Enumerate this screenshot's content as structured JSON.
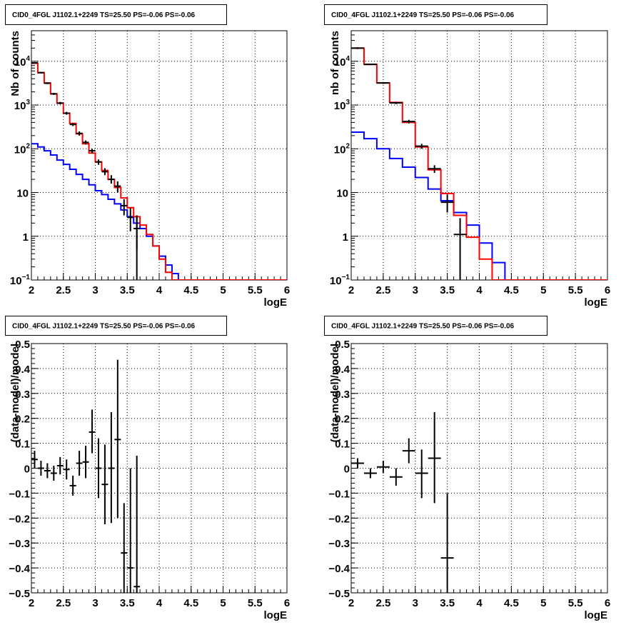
{
  "colors": {
    "data": "#000000",
    "total_model": "#ff0000",
    "source_model": "#0000ff",
    "grid": "#000000",
    "frame": "#000000"
  },
  "chart_data": [
    {
      "type": "histogram",
      "panel": "top-left",
      "title": "CID0_4FGL J1102.1+2249 TS=25.50 PS=-0.06 PS=-0.06",
      "xlabel": "logE",
      "ylabel": "Nb of counts",
      "ylog": true,
      "xlim": [
        2,
        6
      ],
      "ylim": [
        0.1,
        50000
      ],
      "x_ticks": [
        "2",
        "2.5",
        "3",
        "3.5",
        "4",
        "4.5",
        "5",
        "5.5",
        "6"
      ],
      "y_ticks": [
        {
          "value": 0.1,
          "base": "10",
          "exp": "−1"
        },
        {
          "value": 1,
          "label": "1"
        },
        {
          "value": 10,
          "label": "10"
        },
        {
          "value": 100,
          "base": "10",
          "exp": "2"
        },
        {
          "value": 1000,
          "base": "10",
          "exp": "3"
        },
        {
          "value": 10000,
          "base": "10",
          "exp": "4"
        }
      ],
      "grid": true,
      "bin_edges": [
        2.0,
        2.1,
        2.2,
        2.3,
        2.4,
        2.5,
        2.6,
        2.7,
        2.8,
        2.9,
        3.0,
        3.1,
        3.2,
        3.3,
        3.4,
        3.5,
        3.6,
        3.7,
        3.8,
        3.9,
        4.0,
        4.1,
        4.2,
        4.3,
        4.4,
        4.5,
        4.6,
        4.7,
        4.8,
        4.9,
        5.0,
        5.1,
        5.2,
        5.3,
        5.4,
        5.5,
        5.6,
        5.7,
        5.8,
        5.9,
        6.0
      ],
      "series": [
        {
          "role": "source_model",
          "values": [
            130,
            110,
            90,
            72,
            55,
            44,
            34,
            26,
            20,
            15,
            11,
            9,
            7,
            5.5,
            4,
            2.8,
            2,
            1.5,
            1.0,
            0.6,
            0.35,
            0.22,
            0.14,
            0.1,
            0.1,
            0.1,
            0.1,
            0.1,
            0.1,
            0.1,
            0.1,
            0.1,
            0.1,
            0.1,
            0.1,
            0.1,
            0.1,
            0.1,
            0.1,
            0.1
          ]
        },
        {
          "role": "total_model",
          "values": [
            9000,
            5500,
            3200,
            1800,
            1100,
            650,
            380,
            220,
            130,
            80,
            50,
            32,
            20,
            13,
            7.5,
            4.5,
            2.8,
            1.8,
            1.1,
            0.6,
            0.3,
            0.15,
            0.1,
            0.1,
            0.1,
            0.1,
            0.1,
            0.1,
            0.1,
            0.1,
            0.1,
            0.1,
            0.1,
            0.1,
            0.1,
            0.1,
            0.1,
            0.1,
            0.1,
            0.1
          ]
        },
        {
          "role": "data",
          "points": [
            {
              "x": 2.05,
              "y": 9200,
              "lo": 8900,
              "hi": 9500
            },
            {
              "x": 2.15,
              "y": 5500,
              "lo": 5300,
              "hi": 5700
            },
            {
              "x": 2.25,
              "y": 3150,
              "lo": 3000,
              "hi": 3300
            },
            {
              "x": 2.35,
              "y": 1800,
              "lo": 1700,
              "hi": 1900
            },
            {
              "x": 2.45,
              "y": 1110,
              "lo": 1040,
              "hi": 1180
            },
            {
              "x": 2.55,
              "y": 650,
              "lo": 600,
              "hi": 700
            },
            {
              "x": 2.65,
              "y": 360,
              "lo": 330,
              "hi": 390
            },
            {
              "x": 2.75,
              "y": 225,
              "lo": 200,
              "hi": 250
            },
            {
              "x": 2.85,
              "y": 140,
              "lo": 125,
              "hi": 155
            },
            {
              "x": 2.95,
              "y": 90,
              "lo": 80,
              "hi": 100
            },
            {
              "x": 3.05,
              "y": 50,
              "lo": 43,
              "hi": 57
            },
            {
              "x": 3.15,
              "y": 30,
              "lo": 25,
              "hi": 36
            },
            {
              "x": 3.25,
              "y": 20,
              "lo": 16,
              "hi": 25
            },
            {
              "x": 3.35,
              "y": 14,
              "lo": 10,
              "hi": 18
            },
            {
              "x": 3.45,
              "y": 5,
              "lo": 3,
              "hi": 7
            },
            {
              "x": 3.55,
              "y": 2.7,
              "lo": 1.3,
              "hi": 4.5
            },
            {
              "x": 3.65,
              "y": 1.5,
              "lo": 0.5,
              "hi": 3
            },
            {
              "x": 3.65,
              "y": 1.5,
              "lo": 0.1,
              "hi": 3
            }
          ]
        }
      ]
    },
    {
      "type": "histogram",
      "panel": "top-right",
      "title": "CID0_4FGL J1102.1+2249 TS=25.50 PS=-0.06 PS=-0.06",
      "xlabel": "logE",
      "ylabel": "nb of counts",
      "ylog": true,
      "xlim": [
        2,
        6
      ],
      "ylim": [
        0.1,
        50000
      ],
      "x_ticks": [
        "2",
        "2.5",
        "3",
        "3.5",
        "4",
        "4.5",
        "5",
        "5.5",
        "6"
      ],
      "y_ticks": [
        {
          "value": 0.1,
          "base": "10",
          "exp": "−1"
        },
        {
          "value": 1,
          "label": "1"
        },
        {
          "value": 10,
          "label": "10"
        },
        {
          "value": 100,
          "base": "10",
          "exp": "2"
        },
        {
          "value": 1000,
          "base": "10",
          "exp": "3"
        },
        {
          "value": 10000,
          "base": "10",
          "exp": "4"
        }
      ],
      "grid": true,
      "bin_edges": [
        2.0,
        2.2,
        2.4,
        2.6,
        2.8,
        3.0,
        3.2,
        3.4,
        3.6,
        3.8,
        4.0,
        4.2,
        4.4,
        4.6,
        4.8,
        5.0,
        5.2,
        5.4,
        5.6,
        5.8,
        6.0
      ],
      "series": [
        {
          "role": "source_model",
          "values": [
            240,
            170,
            100,
            60,
            38,
            22,
            12,
            6.5,
            3.5,
            1.8,
            0.7,
            0.25,
            0.1,
            0.1,
            0.1,
            0.1,
            0.1,
            0.1,
            0.1,
            0.1
          ]
        },
        {
          "role": "total_model",
          "values": [
            20000,
            8500,
            3200,
            1150,
            400,
            110,
            33,
            9.5,
            3,
            0.95,
            0.3,
            0.1,
            0.1,
            0.1,
            0.1,
            0.1,
            0.1,
            0.1,
            0.1,
            0.1
          ]
        },
        {
          "role": "data",
          "points": [
            {
              "x": 2.1,
              "y": 20000,
              "lo": 19000,
              "hi": 21000
            },
            {
              "x": 2.3,
              "y": 8500,
              "lo": 8200,
              "hi": 8800
            },
            {
              "x": 2.5,
              "y": 3200,
              "lo": 3050,
              "hi": 3350
            },
            {
              "x": 2.7,
              "y": 1120,
              "lo": 1050,
              "hi": 1190
            },
            {
              "x": 2.9,
              "y": 420,
              "lo": 380,
              "hi": 460
            },
            {
              "x": 3.1,
              "y": 115,
              "lo": 100,
              "hi": 130
            },
            {
              "x": 3.3,
              "y": 35,
              "lo": 28,
              "hi": 42
            },
            {
              "x": 3.5,
              "y": 6,
              "lo": 3.5,
              "hi": 9
            },
            {
              "x": 3.7,
              "y": 1.1,
              "lo": 0.1,
              "hi": 2.6
            }
          ]
        }
      ]
    },
    {
      "type": "scatter",
      "panel": "bottom-left",
      "title": "CID0_4FGL J1102.1+2249 TS=25.50 PS=-0.06 PS=-0.06",
      "xlabel": "logE",
      "ylabel": "(data-model)/model",
      "xlim": [
        2,
        6
      ],
      "ylim": [
        -0.5,
        0.5
      ],
      "x_ticks": [
        "2",
        "2.5",
        "3",
        "3.5",
        "4",
        "4.5",
        "5",
        "5.5",
        "6"
      ],
      "y_ticks": [
        "-0.5",
        "-0.4",
        "-0.3",
        "-0.2",
        "-0.1",
        "0",
        "0.1",
        "0.2",
        "0.3",
        "0.4",
        "0.5"
      ],
      "grid": true,
      "points": [
        {
          "x": 2.05,
          "y": 0.035,
          "lo": 0.0,
          "hi": 0.07
        },
        {
          "x": 2.15,
          "y": 0.0,
          "lo": -0.03,
          "hi": 0.03
        },
        {
          "x": 2.25,
          "y": -0.01,
          "lo": -0.04,
          "hi": 0.02
        },
        {
          "x": 2.35,
          "y": -0.02,
          "lo": -0.05,
          "hi": 0.01
        },
        {
          "x": 2.45,
          "y": 0.01,
          "lo": -0.025,
          "hi": 0.045
        },
        {
          "x": 2.55,
          "y": -0.005,
          "lo": -0.045,
          "hi": 0.035
        },
        {
          "x": 2.65,
          "y": -0.07,
          "lo": -0.11,
          "hi": -0.03
        },
        {
          "x": 2.75,
          "y": 0.02,
          "lo": -0.03,
          "hi": 0.07
        },
        {
          "x": 2.85,
          "y": 0.025,
          "lo": -0.04,
          "hi": 0.09
        },
        {
          "x": 2.95,
          "y": 0.145,
          "lo": 0.06,
          "hi": 0.235
        },
        {
          "x": 3.05,
          "y": 0.0,
          "lo": -0.12,
          "hi": 0.12
        },
        {
          "x": 3.15,
          "y": -0.065,
          "lo": -0.225,
          "hi": 0.095
        },
        {
          "x": 3.25,
          "y": 0.0,
          "lo": -0.22,
          "hi": 0.225
        },
        {
          "x": 3.35,
          "y": 0.115,
          "lo": -0.2,
          "hi": 0.435
        },
        {
          "x": 3.45,
          "y": -0.34,
          "lo": -0.5,
          "hi": -0.14
        },
        {
          "x": 3.55,
          "y": -0.4,
          "lo": -0.5,
          "hi": 0.0
        },
        {
          "x": 3.65,
          "y": -0.475,
          "lo": -0.5,
          "hi": 0.05
        }
      ]
    },
    {
      "type": "scatter",
      "panel": "bottom-right",
      "title": "CID0_4FGL J1102.1+2249 TS=25.50 PS=-0.06 PS=-0.06",
      "xlabel": "logE",
      "ylabel": "(data-model)/model",
      "xlim": [
        2,
        6
      ],
      "ylim": [
        -0.5,
        0.5
      ],
      "x_ticks": [
        "2",
        "2.5",
        "3",
        "3.5",
        "4",
        "4.5",
        "5",
        "5.5",
        "6"
      ],
      "y_ticks": [
        "-0.5",
        "-0.4",
        "-0.3",
        "-0.2",
        "-0.1",
        "0",
        "0.1",
        "0.2",
        "0.3",
        "0.4",
        "0.5"
      ],
      "grid": true,
      "points": [
        {
          "x": 2.1,
          "y": 0.02,
          "lo": 0.0,
          "hi": 0.04
        },
        {
          "x": 2.3,
          "y": -0.02,
          "lo": -0.04,
          "hi": 0.0
        },
        {
          "x": 2.5,
          "y": 0.005,
          "lo": -0.02,
          "hi": 0.03
        },
        {
          "x": 2.7,
          "y": -0.035,
          "lo": -0.07,
          "hi": 0.0
        },
        {
          "x": 2.9,
          "y": 0.07,
          "lo": 0.02,
          "hi": 0.12
        },
        {
          "x": 3.1,
          "y": -0.02,
          "lo": -0.12,
          "hi": 0.075
        },
        {
          "x": 3.3,
          "y": 0.04,
          "lo": -0.14,
          "hi": 0.225
        },
        {
          "x": 3.5,
          "y": -0.36,
          "lo": -0.5,
          "hi": -0.1
        }
      ]
    }
  ]
}
